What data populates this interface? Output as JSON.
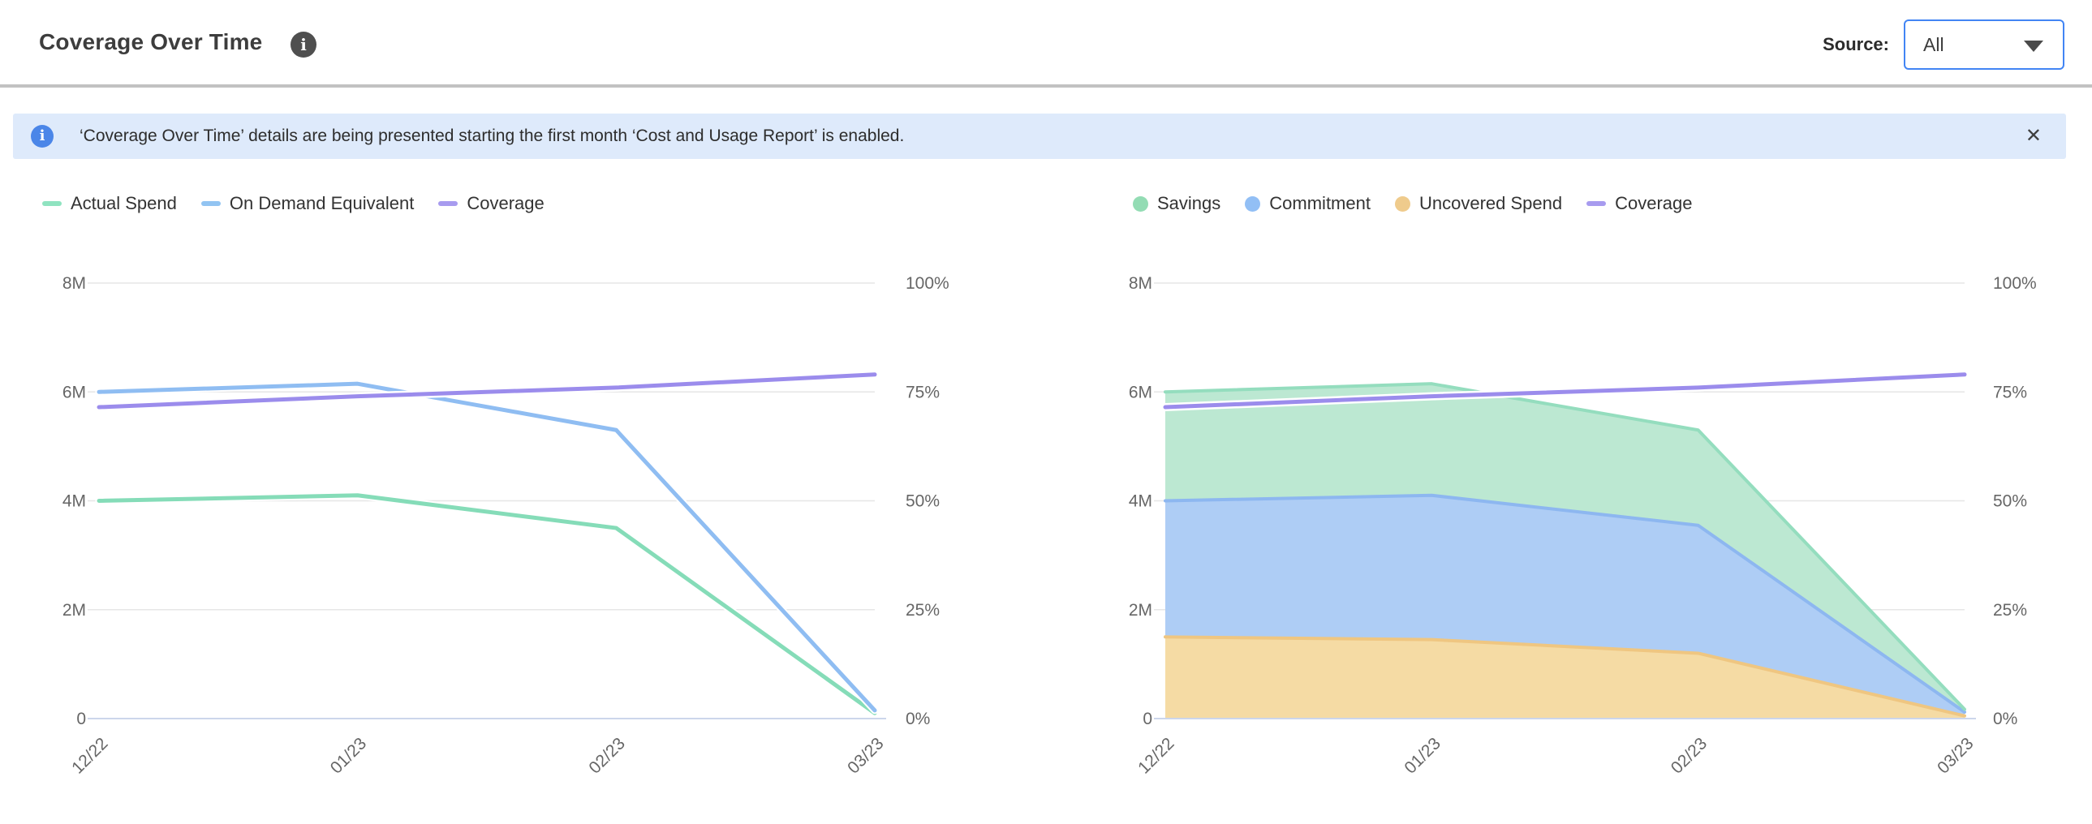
{
  "header": {
    "title": "Coverage Over Time",
    "source_label": "Source:",
    "source_value": "All"
  },
  "banner": {
    "message": "‘Coverage Over Time’ details are being presented starting the first month ‘Cost and Usage Report’ is enabled.",
    "close_symbol": "✕"
  },
  "chart_data": [
    {
      "type": "line",
      "title": "",
      "categories": [
        "12/22",
        "01/23",
        "02/23",
        "03/23"
      ],
      "y_left": {
        "ticks": [
          "8M",
          "6M",
          "4M",
          "2M",
          "0"
        ],
        "tick_values_millions": [
          8,
          6,
          4,
          2,
          0
        ],
        "range_millions": [
          0,
          8
        ]
      },
      "y_right": {
        "ticks": [
          "100%",
          "75%",
          "50%",
          "25%",
          "0%"
        ],
        "tick_values_percent": [
          100,
          75,
          50,
          25,
          0
        ],
        "range_percent": [
          0,
          100
        ]
      },
      "grid": true,
      "legend_position": "top-left",
      "legend": [
        {
          "label": "Actual Spend",
          "marker": "line",
          "color": "#8fe3c0"
        },
        {
          "label": "On Demand Equivalent",
          "marker": "line",
          "color": "#92c4f2"
        },
        {
          "label": "Coverage",
          "marker": "line",
          "color": "#a79bef"
        }
      ],
      "series": [
        {
          "name": "Actual Spend",
          "axis": "money",
          "values_millions": [
            4.0,
            4.1,
            3.5,
            0.1
          ],
          "color": "#85dcb8"
        },
        {
          "name": "On Demand Equivalent",
          "axis": "money",
          "values_millions": [
            6.0,
            6.15,
            5.3,
            0.15
          ],
          "color": "#8fbdf2"
        },
        {
          "name": "Coverage",
          "axis": "percent",
          "values_percent": [
            71.5,
            74,
            76,
            79
          ],
          "color": "#9b8cec"
        }
      ]
    },
    {
      "type": "area",
      "stacked": true,
      "title": "",
      "categories": [
        "12/22",
        "01/23",
        "02/23",
        "03/23"
      ],
      "y_left": {
        "ticks": [
          "8M",
          "6M",
          "4M",
          "2M",
          "0"
        ],
        "tick_values_millions": [
          8,
          6,
          4,
          2,
          0
        ],
        "range_millions": [
          0,
          8
        ]
      },
      "y_right": {
        "ticks": [
          "100%",
          "75%",
          "50%",
          "25%",
          "0%"
        ],
        "tick_values_percent": [
          100,
          75,
          50,
          25,
          0
        ],
        "range_percent": [
          0,
          100
        ]
      },
      "grid": true,
      "legend_position": "top-left",
      "legend": [
        {
          "label": "Savings",
          "marker": "circle",
          "color": "#93dcb4"
        },
        {
          "label": "Commitment",
          "marker": "circle",
          "color": "#92bff5"
        },
        {
          "label": "Uncovered Spend",
          "marker": "circle",
          "color": "#efcb8c"
        },
        {
          "label": "Coverage",
          "marker": "line",
          "color": "#a79bef"
        }
      ],
      "series": [
        {
          "name": "Uncovered Spend",
          "axis": "money",
          "values_millions": [
            1.5,
            1.45,
            1.2,
            0.05
          ],
          "color": "#efc681",
          "fill": "#f5dba4"
        },
        {
          "name": "Commitment",
          "axis": "money",
          "values_millions": [
            2.5,
            2.65,
            2.35,
            0.07
          ],
          "color": "#8db7f0",
          "fill": "#aecdf5"
        },
        {
          "name": "Savings",
          "axis": "money",
          "values_millions": [
            2.0,
            2.05,
            1.75,
            0.05
          ],
          "color": "#94ddbe",
          "fill": "#bce8d2"
        },
        {
          "name": "Coverage",
          "axis": "percent",
          "values_percent": [
            71.5,
            74,
            76,
            79
          ],
          "color": "#9b8cec"
        }
      ]
    }
  ]
}
